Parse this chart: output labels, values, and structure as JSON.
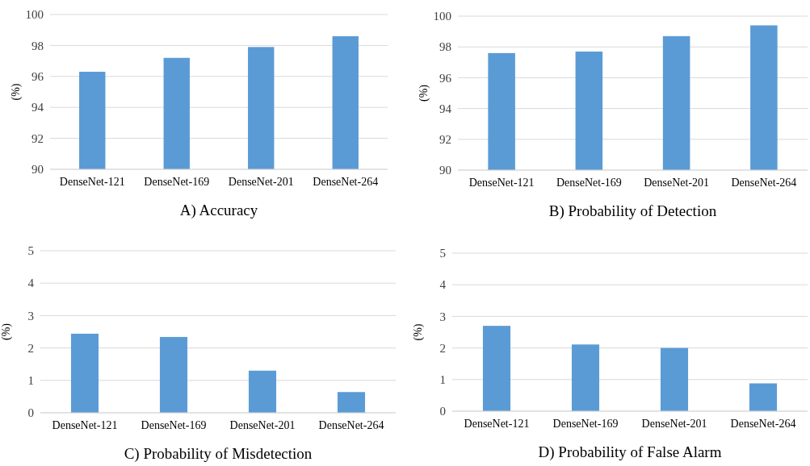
{
  "chart_data": [
    {
      "type": "bar",
      "title": "A) Accuracy",
      "ylabel": "(%)",
      "categories": [
        "DenseNet-121",
        "DenseNet-169",
        "DenseNet-201",
        "DenseNet-264"
      ],
      "values": [
        96.3,
        97.2,
        97.9,
        98.6
      ],
      "color": "#5b9bd5",
      "ylim": [
        90,
        100
      ],
      "yticks": [
        90,
        92,
        94,
        96,
        98,
        100
      ],
      "grid": "y"
    },
    {
      "type": "bar",
      "title": "B) Probability of Detection",
      "ylabel": "(%)",
      "categories": [
        "DenseNet-121",
        "DenseNet-169",
        "DenseNet-201",
        "DenseNet-264"
      ],
      "values": [
        97.6,
        97.7,
        98.7,
        99.4
      ],
      "color": "#5b9bd5",
      "ylim": [
        90,
        100
      ],
      "yticks": [
        90,
        92,
        94,
        96,
        98,
        100
      ],
      "grid": "y"
    },
    {
      "type": "bar",
      "title": "C) Probability of Misdetection",
      "ylabel": "(%)",
      "categories": [
        "DenseNet-121",
        "DenseNet-169",
        "DenseNet-201",
        "DenseNet-264"
      ],
      "values": [
        2.44,
        2.34,
        1.3,
        0.64
      ],
      "color": "#5b9bd5",
      "ylim": [
        0,
        5
      ],
      "yticks": [
        0,
        1,
        2,
        3,
        4,
        5
      ],
      "grid": "y"
    },
    {
      "type": "bar",
      "title": "D) Probability of False Alarm",
      "ylabel": "(%)",
      "categories": [
        "DenseNet-121",
        "DenseNet-169",
        "DenseNet-201",
        "DenseNet-264"
      ],
      "values": [
        2.7,
        2.11,
        2.0,
        0.88
      ],
      "color": "#5b9bd5",
      "ylim": [
        0,
        5
      ],
      "yticks": [
        0,
        1,
        2,
        3,
        4,
        5
      ],
      "grid": "y"
    }
  ]
}
